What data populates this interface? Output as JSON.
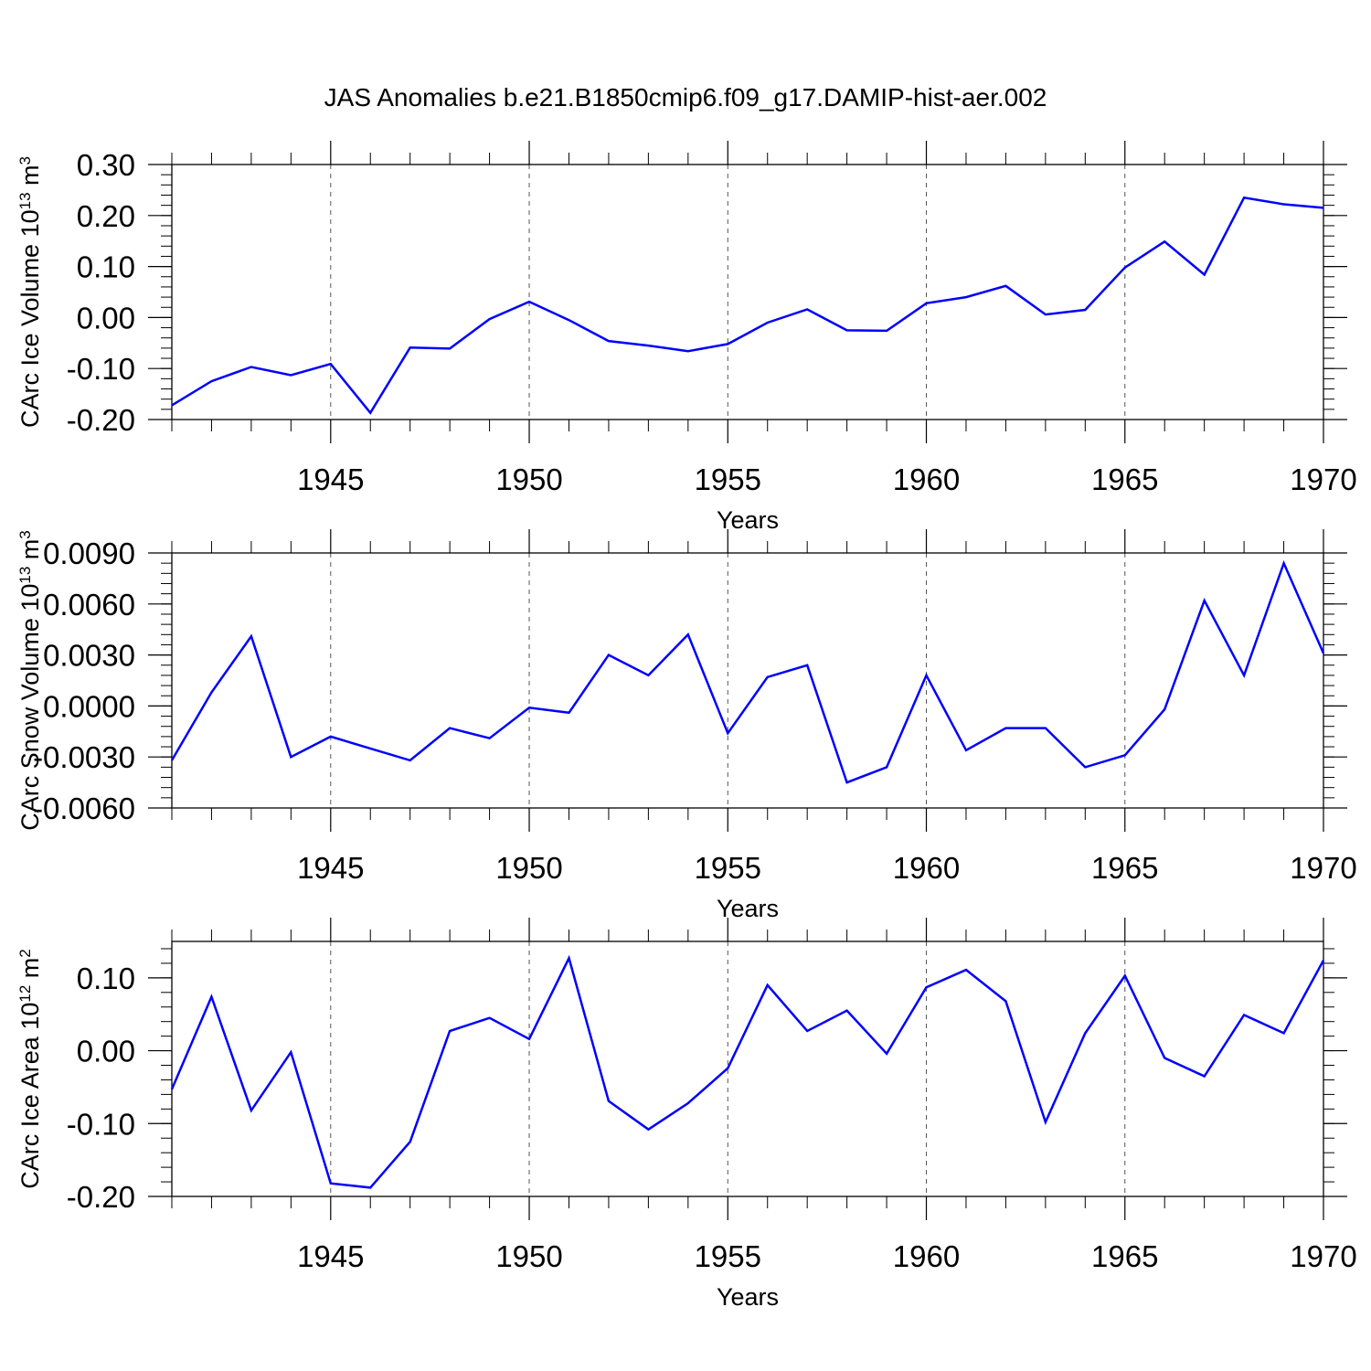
{
  "figure": {
    "title": "JAS Anomalies b.e21.B1850cmip6.f09_g17.DAMIP-hist-aer.002",
    "line_color": "#0000ff"
  },
  "chart_data": [
    {
      "type": "line",
      "ylabel_main": "CArc Ice Volume 10",
      "ylabel_exp": "13",
      "ylabel_unit": " m",
      "ylabel_unit_exp": "3",
      "xlabel": "Years",
      "xlim": [
        1941,
        1970
      ],
      "ylim": [
        -0.2,
        0.3
      ],
      "yticks": [
        -0.2,
        -0.1,
        0.0,
        0.1,
        0.2,
        0.3
      ],
      "ytick_labels": [
        "-0.20",
        "-0.10",
        "0.00",
        "0.10",
        "0.20",
        "0.30"
      ],
      "xticks": [
        1945,
        1950,
        1955,
        1960,
        1965,
        1970
      ],
      "xtick_labels": [
        "1945",
        "1950",
        "1955",
        "1960",
        "1965",
        "1970"
      ],
      "series": [
        {
          "name": "CArc Ice Volume",
          "x": [
            1941,
            1942,
            1943,
            1944,
            1945,
            1946,
            1947,
            1948,
            1949,
            1950,
            1951,
            1952,
            1953,
            1954,
            1955,
            1956,
            1957,
            1958,
            1959,
            1960,
            1961,
            1962,
            1963,
            1964,
            1965,
            1966,
            1967,
            1968,
            1969,
            1970
          ],
          "values": [
            -0.172,
            -0.125,
            -0.097,
            -0.113,
            -0.091,
            -0.187,
            -0.059,
            -0.061,
            -0.003,
            0.031,
            -0.005,
            -0.046,
            -0.055,
            -0.066,
            -0.052,
            -0.01,
            0.016,
            -0.025,
            -0.026,
            0.028,
            0.04,
            0.062,
            0.006,
            0.015,
            0.098,
            0.149,
            0.084,
            0.235,
            0.222,
            0.215
          ]
        }
      ]
    },
    {
      "type": "line",
      "ylabel_main": "CArc Snow Volume 10",
      "ylabel_exp": "13",
      "ylabel_unit": " m",
      "ylabel_unit_exp": "3",
      "xlabel": "Years",
      "xlim": [
        1941,
        1970
      ],
      "ylim": [
        -0.006,
        0.009
      ],
      "yticks": [
        -0.006,
        -0.003,
        0.0,
        0.003,
        0.006,
        0.009
      ],
      "ytick_labels": [
        "-0.0060",
        "-0.0030",
        "0.0000",
        "0.0030",
        "0.0060",
        "0.0090"
      ],
      "xticks": [
        1945,
        1950,
        1955,
        1960,
        1965,
        1970
      ],
      "xtick_labels": [
        "1945",
        "1950",
        "1955",
        "1960",
        "1965",
        "1970"
      ],
      "series": [
        {
          "name": "CArc Snow Volume",
          "x": [
            1941,
            1942,
            1943,
            1944,
            1945,
            1946,
            1947,
            1948,
            1949,
            1950,
            1951,
            1952,
            1953,
            1954,
            1955,
            1956,
            1957,
            1958,
            1959,
            1960,
            1961,
            1962,
            1963,
            1964,
            1965,
            1966,
            1967,
            1968,
            1969,
            1970
          ],
          "values": [
            -0.0032,
            0.0008,
            0.0041,
            -0.003,
            -0.0018,
            -0.0025,
            -0.0032,
            -0.0013,
            -0.0019,
            -0.0001,
            -0.0004,
            0.003,
            0.0018,
            0.0042,
            -0.0016,
            0.0017,
            0.0024,
            -0.0045,
            -0.0036,
            0.0018,
            -0.0026,
            -0.0013,
            -0.0013,
            -0.0036,
            -0.0029,
            -0.0002,
            0.0062,
            0.0018,
            0.0084,
            0.0031
          ]
        }
      ]
    },
    {
      "type": "line",
      "ylabel_main": "CArc Ice Area 10",
      "ylabel_exp": "12",
      "ylabel_unit": " m",
      "ylabel_unit_exp": "2",
      "xlabel": "Years",
      "xlim": [
        1941,
        1970
      ],
      "ylim": [
        -0.2,
        0.15
      ],
      "yticks": [
        -0.2,
        -0.1,
        0.0,
        0.1
      ],
      "ytick_labels": [
        "-0.20",
        "-0.10",
        "0.00",
        "0.10"
      ],
      "xticks": [
        1945,
        1950,
        1955,
        1960,
        1965,
        1970
      ],
      "xtick_labels": [
        "1945",
        "1950",
        "1955",
        "1960",
        "1965",
        "1970"
      ],
      "series": [
        {
          "name": "CArc Ice Area",
          "x": [
            1941,
            1942,
            1943,
            1944,
            1945,
            1946,
            1947,
            1948,
            1949,
            1950,
            1951,
            1952,
            1953,
            1954,
            1955,
            1956,
            1957,
            1958,
            1959,
            1960,
            1961,
            1962,
            1963,
            1964,
            1965,
            1966,
            1967,
            1968,
            1969,
            1970
          ],
          "values": [
            -0.053,
            0.074,
            -0.082,
            -0.002,
            -0.182,
            -0.188,
            -0.125,
            0.027,
            0.045,
            0.016,
            0.127,
            -0.069,
            -0.108,
            -0.072,
            -0.024,
            0.09,
            0.027,
            0.055,
            -0.004,
            0.087,
            0.111,
            0.068,
            -0.098,
            0.024,
            0.103,
            -0.01,
            -0.035,
            0.049,
            0.024,
            0.124
          ]
        }
      ]
    }
  ]
}
